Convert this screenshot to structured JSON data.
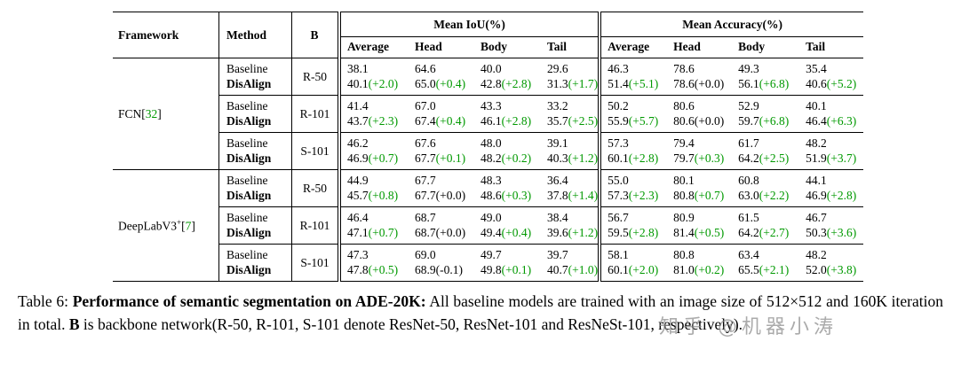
{
  "colors": {
    "delta_green": "#009900",
    "cite_green": "#009900",
    "rule": "#000000",
    "watermark": "#8c8c8c"
  },
  "table": {
    "headers": {
      "framework": "Framework",
      "method": "Method",
      "backbone": "B",
      "group1": "Mean IoU(%)",
      "group2": "Mean Accuracy(%)",
      "subcols": [
        "Average",
        "Head",
        "Body",
        "Tail",
        "Average",
        "Head",
        "Body",
        "Tail"
      ]
    },
    "method_labels": {
      "baseline": "Baseline",
      "disalign": "DisAlign"
    },
    "groups": [
      {
        "framework": "FCN",
        "sup": "",
        "cite": "32",
        "rows": [
          {
            "backbone": "R-50",
            "baseline": [
              "38.1",
              "64.6",
              "40.0",
              "29.6",
              "46.3",
              "78.6",
              "49.3",
              "35.4"
            ],
            "disalign": [
              {
                "v": "40.1",
                "d": "(+2.0)",
                "g": true
              },
              {
                "v": "65.0",
                "d": "(+0.4)",
                "g": true
              },
              {
                "v": "42.8",
                "d": "(+2.8)",
                "g": true
              },
              {
                "v": "31.3",
                "d": "(+1.7)",
                "g": true
              },
              {
                "v": "51.4",
                "d": "(+5.1)",
                "g": true
              },
              {
                "v": "78.6",
                "d": "(+0.0)",
                "g": false
              },
              {
                "v": "56.1",
                "d": "(+6.8)",
                "g": true
              },
              {
                "v": "40.6",
                "d": "(+5.2)",
                "g": true
              }
            ]
          },
          {
            "backbone": "R-101",
            "baseline": [
              "41.4",
              "67.0",
              "43.3",
              "33.2",
              "50.2",
              "80.6",
              "52.9",
              "40.1"
            ],
            "disalign": [
              {
                "v": "43.7",
                "d": "(+2.3)",
                "g": true
              },
              {
                "v": "67.4",
                "d": "(+0.4)",
                "g": true
              },
              {
                "v": "46.1",
                "d": "(+2.8)",
                "g": true
              },
              {
                "v": "35.7",
                "d": "(+2.5)",
                "g": true
              },
              {
                "v": "55.9",
                "d": "(+5.7)",
                "g": true
              },
              {
                "v": "80.6",
                "d": "(+0.0)",
                "g": false
              },
              {
                "v": "59.7",
                "d": "(+6.8)",
                "g": true
              },
              {
                "v": "46.4",
                "d": "(+6.3)",
                "g": true
              }
            ]
          },
          {
            "backbone": "S-101",
            "baseline": [
              "46.2",
              "67.6",
              "48.0",
              "39.1",
              "57.3",
              "79.4",
              "61.7",
              "48.2"
            ],
            "disalign": [
              {
                "v": "46.9",
                "d": "(+0.7)",
                "g": true
              },
              {
                "v": "67.7",
                "d": "(+0.1)",
                "g": true
              },
              {
                "v": "48.2",
                "d": "(+0.2)",
                "g": true
              },
              {
                "v": "40.3",
                "d": "(+1.2)",
                "g": true
              },
              {
                "v": "60.1",
                "d": "(+2.8)",
                "g": true
              },
              {
                "v": "79.7",
                "d": "(+0.3)",
                "g": true
              },
              {
                "v": "64.2",
                "d": "(+2.5)",
                "g": true
              },
              {
                "v": "51.9",
                "d": "(+3.7)",
                "g": true
              }
            ]
          }
        ]
      },
      {
        "framework": "DeepLabV3",
        "sup": "+",
        "cite": "7",
        "rows": [
          {
            "backbone": "R-50",
            "baseline": [
              "44.9",
              "67.7",
              "48.3",
              "36.4",
              "55.0",
              "80.1",
              "60.8",
              "44.1"
            ],
            "disalign": [
              {
                "v": "45.7",
                "d": "(+0.8)",
                "g": true
              },
              {
                "v": "67.7",
                "d": "(+0.0)",
                "g": false
              },
              {
                "v": "48.6",
                "d": "(+0.3)",
                "g": true
              },
              {
                "v": "37.8",
                "d": "(+1.4)",
                "g": true
              },
              {
                "v": "57.3",
                "d": "(+2.3)",
                "g": true
              },
              {
                "v": "80.8",
                "d": "(+0.7)",
                "g": true
              },
              {
                "v": "63.0",
                "d": "(+2.2)",
                "g": true
              },
              {
                "v": "46.9",
                "d": "(+2.8)",
                "g": true
              }
            ]
          },
          {
            "backbone": "R-101",
            "baseline": [
              "46.4",
              "68.7",
              "49.0",
              "38.4",
              "56.7",
              "80.9",
              "61.5",
              "46.7"
            ],
            "disalign": [
              {
                "v": "47.1",
                "d": "(+0.7)",
                "g": true
              },
              {
                "v": "68.7",
                "d": "(+0.0)",
                "g": false
              },
              {
                "v": "49.4",
                "d": "(+0.4)",
                "g": true
              },
              {
                "v": "39.6",
                "d": "(+1.2)",
                "g": true
              },
              {
                "v": "59.5",
                "d": "(+2.8)",
                "g": true
              },
              {
                "v": "81.4",
                "d": "(+0.5)",
                "g": true
              },
              {
                "v": "64.2",
                "d": "(+2.7)",
                "g": true
              },
              {
                "v": "50.3",
                "d": "(+3.6)",
                "g": true
              }
            ]
          },
          {
            "backbone": "S-101",
            "baseline": [
              "47.3",
              "69.0",
              "49.7",
              "39.7",
              "58.1",
              "80.8",
              "63.4",
              "48.2"
            ],
            "disalign": [
              {
                "v": "47.8",
                "d": "(+0.5)",
                "g": true
              },
              {
                "v": "68.9",
                "d": "(-0.1)",
                "g": false
              },
              {
                "v": "49.8",
                "d": "(+0.1)",
                "g": true
              },
              {
                "v": "40.7",
                "d": "(+1.0)",
                "g": true
              },
              {
                "v": "60.1",
                "d": "(+2.0)",
                "g": true
              },
              {
                "v": "81.0",
                "d": "(+0.2)",
                "g": true
              },
              {
                "v": "65.5",
                "d": "(+2.1)",
                "g": true
              },
              {
                "v": "52.0",
                "d": "(+3.8)",
                "g": true
              }
            ]
          }
        ]
      }
    ]
  },
  "caption": {
    "prefix": "Table 6: ",
    "bold1": "Performance of semantic segmentation on ADE-20K:",
    "text1": " All baseline models are trained with an image size of 512×512 and 160K iteration in total.  ",
    "bold_b": "B",
    "text2": " is backbone network(R-50, R-101, S-101 denote ResNet-50, ResNet-101 and ResNeSt-101, respectively)."
  },
  "watermark": {
    "text": "知乎 @机器小涛"
  }
}
